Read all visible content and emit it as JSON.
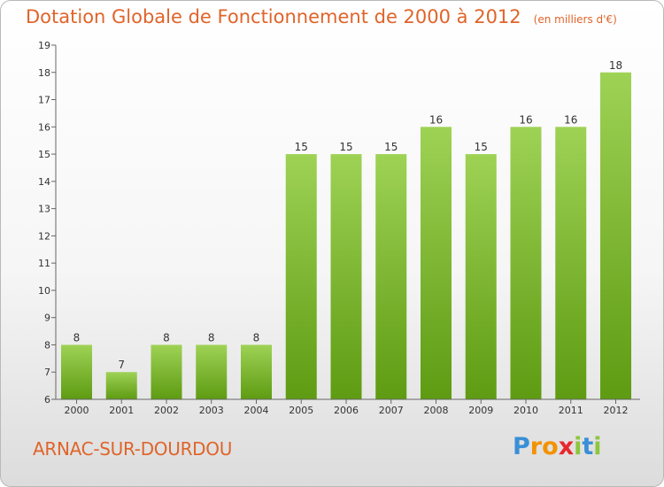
{
  "header": {
    "title": "Dotation Globale de Fonctionnement de 2000 à 2012",
    "subtitle": "(en milliers d'€)"
  },
  "footer": {
    "commune": "ARNAC-SUR-DOURDOU",
    "logo": {
      "letters": [
        "P",
        "r",
        "o",
        "x",
        "i",
        "t",
        "i"
      ],
      "colors": [
        "#3a8fd6",
        "#f39200",
        "#f39200",
        "#e8262c",
        "#8dc63f",
        "#3a8fd6",
        "#8dc63f"
      ]
    }
  },
  "colors": {
    "bar_top": "#9ed255",
    "bar_bottom": "#5e9b12",
    "axis": "#666666",
    "title": "#e0642a"
  },
  "chart_data": {
    "type": "bar",
    "title": "Dotation Globale de Fonctionnement de 2000 à 2012",
    "subtitle": "(en milliers d'€)",
    "categories": [
      "2000",
      "2001",
      "2002",
      "2003",
      "2004",
      "2005",
      "2006",
      "2007",
      "2008",
      "2009",
      "2010",
      "2011",
      "2012"
    ],
    "values": [
      8,
      7,
      8,
      8,
      8,
      15,
      15,
      15,
      16,
      15,
      16,
      16,
      18
    ],
    "ylim": [
      6,
      19
    ],
    "yticks": [
      6,
      7,
      8,
      9,
      10,
      11,
      12,
      13,
      14,
      15,
      16,
      17,
      18,
      19
    ],
    "xlabel": "",
    "ylabel": "",
    "grid": false,
    "data_labels": true
  }
}
